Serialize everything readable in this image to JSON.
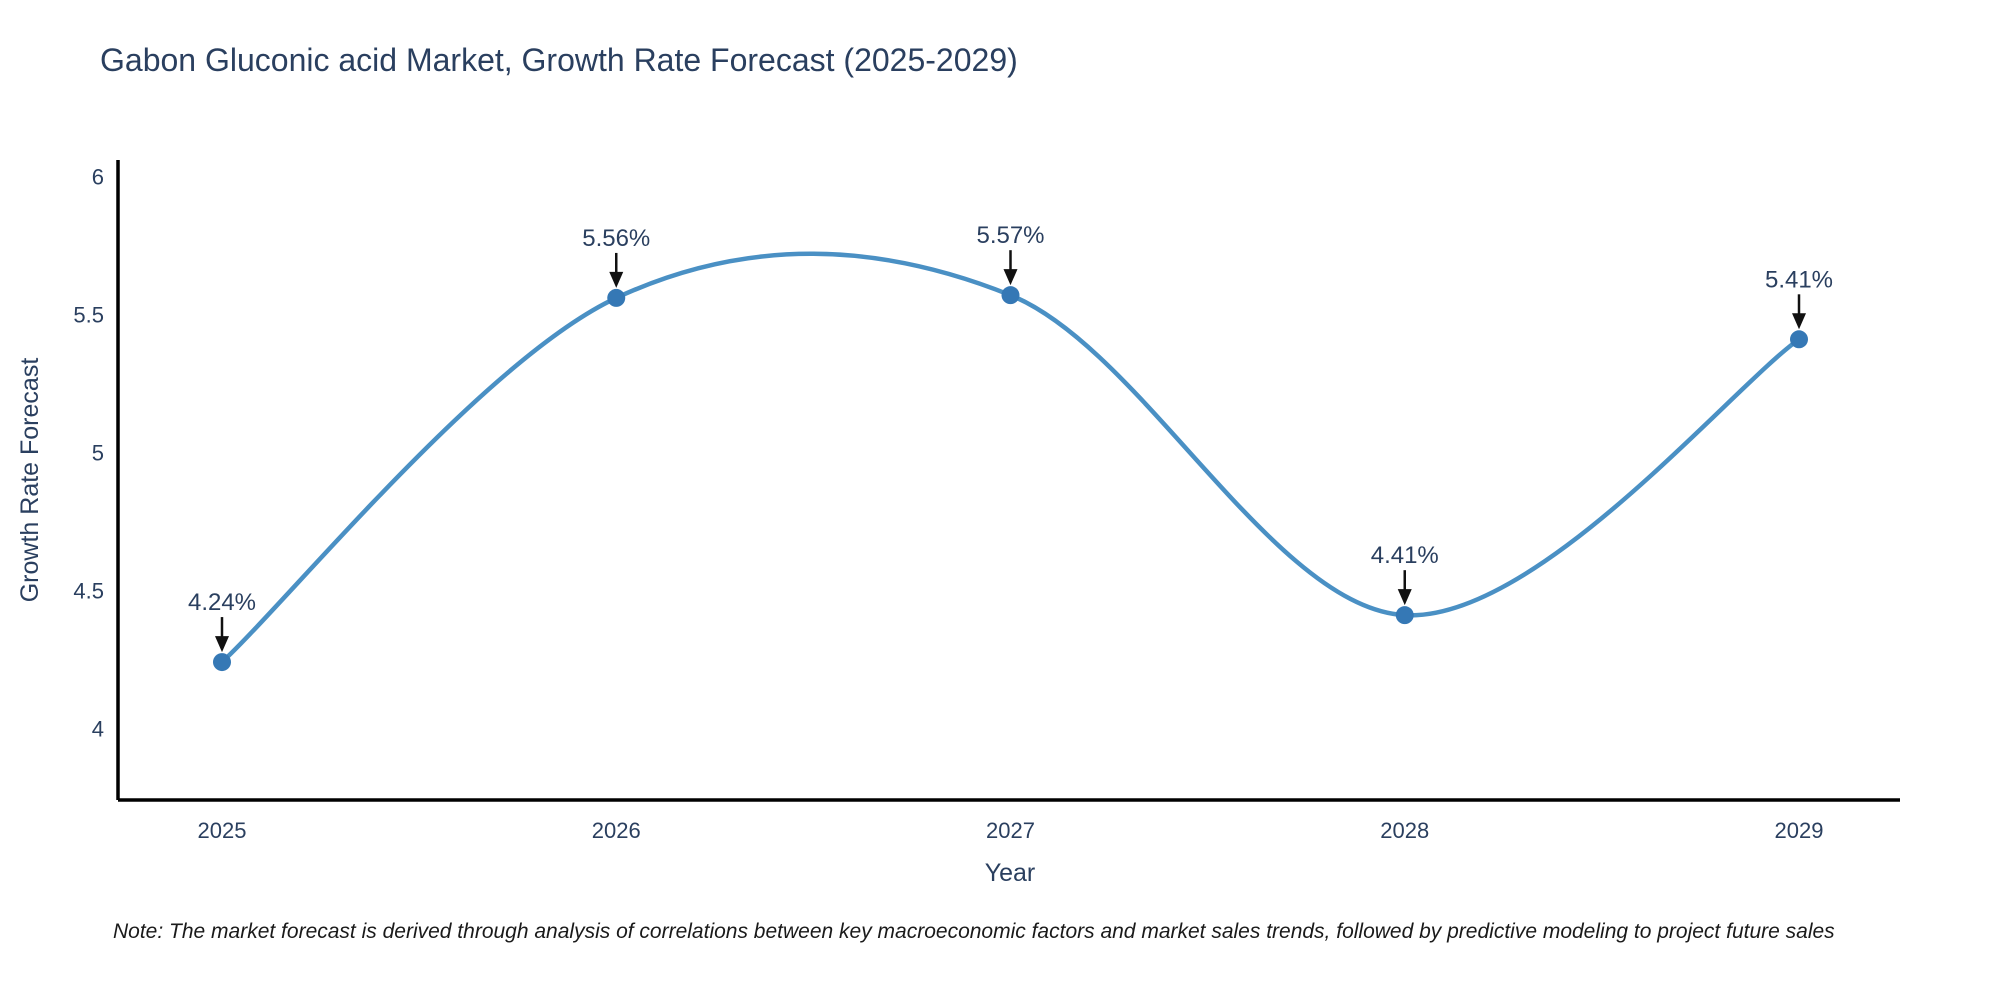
{
  "chart_data": {
    "type": "line",
    "title": "Gabon Gluconic acid Market, Growth Rate Forecast (2025-2029)",
    "x": [
      "2025",
      "2026",
      "2027",
      "2028",
      "2029"
    ],
    "values": [
      4.24,
      5.56,
      5.57,
      4.41,
      5.41
    ],
    "point_labels": [
      "4.24%",
      "5.56%",
      "5.57%",
      "4.41%",
      "5.41%"
    ],
    "xlabel": "Year",
    "ylabel": "Growth Rate Forecast",
    "yticks": [
      4,
      4.5,
      5,
      5.5,
      6
    ],
    "ytick_labels": [
      "4",
      "4.5",
      "5",
      "5.5",
      "6"
    ],
    "ylim": [
      3.74,
      6.06
    ],
    "line_shape": "spline",
    "grid": false,
    "legend": "none",
    "colors": {
      "line": "#4a90c4",
      "marker": "#3578b5",
      "axis_line": "#000000",
      "text": "#2a3f5f",
      "annotation_text": "#2a3f5f",
      "annotation_arrow": "#111111"
    }
  },
  "note": "Note: The market forecast is derived through analysis of correlations between key macroeconomic factors and market sales trends, followed by predictive modeling to project future sales"
}
